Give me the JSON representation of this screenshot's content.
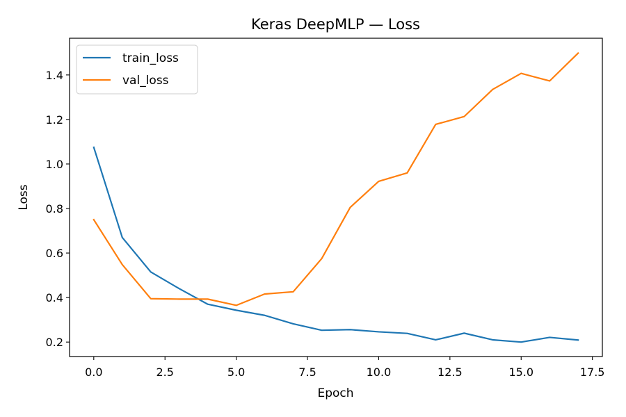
{
  "chart_data": {
    "type": "line",
    "title": "Keras DeepMLP — Loss",
    "xlabel": "Epoch",
    "ylabel": "Loss",
    "xlim": [
      -0.85,
      17.85
    ],
    "ylim": [
      0.135,
      1.565
    ],
    "xticks": [
      0.0,
      2.5,
      5.0,
      7.5,
      10.0,
      12.5,
      15.0,
      17.5
    ],
    "xtick_labels": [
      "0.0",
      "2.5",
      "5.0",
      "7.5",
      "10.0",
      "12.5",
      "15.0",
      "17.5"
    ],
    "yticks": [
      0.2,
      0.4,
      0.6,
      0.8,
      1.0,
      1.2,
      1.4
    ],
    "ytick_labels": [
      "0.2",
      "0.4",
      "0.6",
      "0.8",
      "1.0",
      "1.2",
      "1.4"
    ],
    "grid": false,
    "legend_position": "top-left",
    "x": [
      0,
      1,
      2,
      3,
      4,
      5,
      6,
      7,
      8,
      9,
      10,
      11,
      12,
      13,
      14,
      15,
      16,
      17
    ],
    "series": [
      {
        "name": "train_loss",
        "color": "#1f77b4",
        "values": [
          1.075,
          0.67,
          0.515,
          0.44,
          0.37,
          0.343,
          0.32,
          0.282,
          0.253,
          0.256,
          0.246,
          0.239,
          0.21,
          0.24,
          0.21,
          0.2,
          0.221,
          0.209
        ]
      },
      {
        "name": "val_loss",
        "color": "#ff7f0e",
        "values": [
          0.75,
          0.548,
          0.395,
          0.393,
          0.393,
          0.365,
          0.416,
          0.426,
          0.575,
          0.805,
          0.922,
          0.96,
          1.178,
          1.213,
          1.335,
          1.407,
          1.373,
          1.498
        ]
      }
    ]
  }
}
